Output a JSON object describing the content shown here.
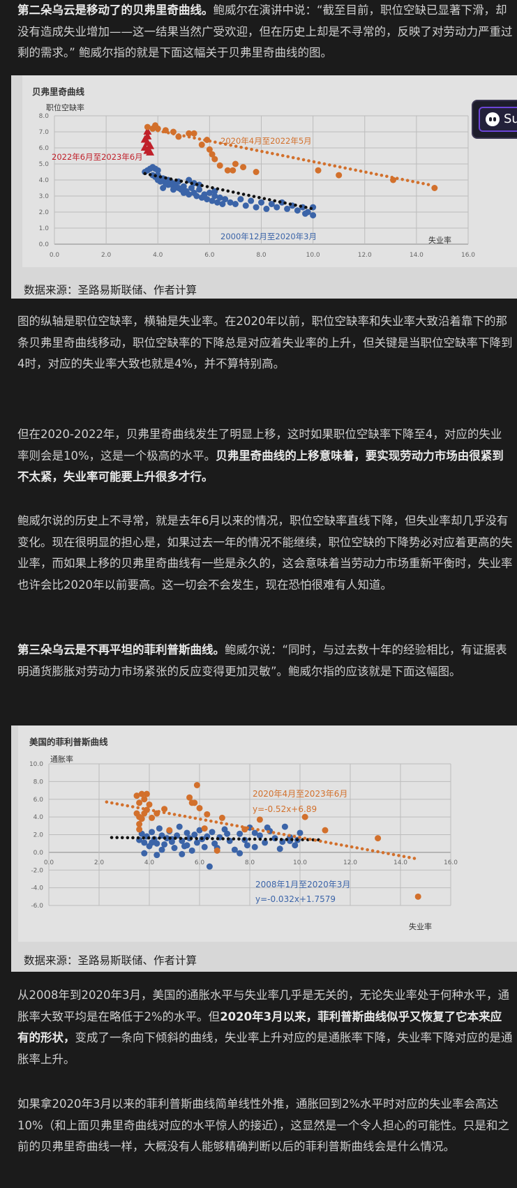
{
  "paragraphs": {
    "p1": {
      "bold": "第二朵乌云是移动了的贝弗里奇曲线。",
      "text": "鲍威尔在演讲中说：“截至目前，职位空缺已显著下滑，却没有造成失业增加——这一结果当然广受欢迎，但在历史上却是不寻常的，反映了对劳动力严重过剩的需求。” 鲍威尔指的就是下面这幅关于贝弗里奇曲线的图。"
    },
    "p2": {
      "text": "图的纵轴是职位空缺率，横轴是失业率。在2020年以前，职位空缺率和失业率大致沿着靠下的那条贝弗里奇曲线移动，职位空缺率的下降总是对应着失业率的上升，但关键是当职位空缺率下降到4时，对应的失业率大致也就是4%，并不算特别高。"
    },
    "p3": {
      "text": "但在2020-2022年，贝弗里奇曲线发生了明显上移，这时如果职位空缺率下降至4，对应的失业率则会是10%，这是一个极高的水平。",
      "bold": "贝弗里奇曲线的上移意味着，要实现劳动力市场由很紧到不太紧，失业率可能要上升很多才行。"
    },
    "p4": {
      "text": "鲍威尔说的历史上不寻常，就是去年6月以来的情况，职位空缺率直线下降，但失业率却几乎没有变化。现在很明显的担心是，如果过去一年的情况不能继续，职位空缺的下降势必对应着更高的失业率，而如果上移的贝弗里奇曲线有一些是永久的，这会意味着当劳动力市场重新平衡时，失业率也许会比2020年以前要高。这一切会不会发生，现在恐怕很难有人知道。"
    },
    "p5": {
      "bold": "第三朵乌云是不再平坦的菲利普斯曲线。",
      "text": "鲍威尔说：“同时，与过去数十年的经验相比，有证据表明通货膨胀对劳动力市场紧张的反应变得更加灵敏”。鲍威尔指的应该就是下面这幅图。"
    },
    "p6": {
      "text1": "从2008年到2020年3月，美国的通胀水平与失业率几乎是无关的，无论失业率处于何种水平，通胀率大致平均是在略低于2%的水平。但",
      "bold": "2020年3月以来，菲利普斯曲线似乎又恢复了它本来应有的形状，",
      "text2": "变成了一条向下倾斜的曲线，失业率上升对应的是通胀率下降，失业率下降对应的是通胀率上升。"
    },
    "p7": {
      "text": "如果拿2020年3月以来的菲利普斯曲线简单线性外推，通胀回到2%水平时对应的失业率会高达10%（和上面贝弗里奇曲线对应的水平惊人的接近），这显然是一个令人担心的可能性。只是和之前的贝弗里奇曲线一样，大概没有人能够精确判断以后的菲利普斯曲线会是什么情况。"
    }
  },
  "overlay": {
    "label": "Su",
    "icon": "ghost-icon"
  },
  "chart_data": [
    {
      "type": "scatter",
      "title": "贝弗里奇曲线",
      "ylabel": "职位空缺率",
      "xlabel": "失业率",
      "xlim": [
        0,
        16
      ],
      "ylim": [
        0,
        8
      ],
      "xticks": [
        "0.0",
        "2.0",
        "4.0",
        "6.0",
        "8.0",
        "10.0",
        "12.0",
        "14.0",
        "16.0"
      ],
      "yticks": [
        "0.0",
        "1.0",
        "2.0",
        "3.0",
        "4.0",
        "5.0",
        "6.0",
        "7.0",
        "8.0"
      ],
      "source": "数据来源：圣路易斯联储、作者计算",
      "colors": {
        "blue": "#3b64a8",
        "orange": "#d2702c",
        "red": "#c0202a",
        "trend": "#111111"
      },
      "series": [
        {
          "name": "2000年12月至2020年3月",
          "color": "#3b64a8",
          "points": [
            [
              3.5,
              4.5
            ],
            [
              3.6,
              4.6
            ],
            [
              3.7,
              4.7
            ],
            [
              3.8,
              4.8
            ],
            [
              3.9,
              4.7
            ],
            [
              4.0,
              4.6
            ],
            [
              3.8,
              4.3
            ],
            [
              3.9,
              4.2
            ],
            [
              4.0,
              4.0
            ],
            [
              4.1,
              3.9
            ],
            [
              4.2,
              4.1
            ],
            [
              4.3,
              3.8
            ],
            [
              4.4,
              3.7
            ],
            [
              4.5,
              3.9
            ],
            [
              4.6,
              3.6
            ],
            [
              4.7,
              3.8
            ],
            [
              4.8,
              3.5
            ],
            [
              4.9,
              3.4
            ],
            [
              5.0,
              3.6
            ],
            [
              5.1,
              3.3
            ],
            [
              5.2,
              3.1
            ],
            [
              5.3,
              3.5
            ],
            [
              5.4,
              3.2
            ],
            [
              5.5,
              3.0
            ],
            [
              5.6,
              3.4
            ],
            [
              5.7,
              2.9
            ],
            [
              5.8,
              3.1
            ],
            [
              5.9,
              2.8
            ],
            [
              6.0,
              3.2
            ],
            [
              6.1,
              2.7
            ],
            [
              6.2,
              3.0
            ],
            [
              6.3,
              2.6
            ],
            [
              6.4,
              2.9
            ],
            [
              6.5,
              2.5
            ],
            [
              6.6,
              2.8
            ],
            [
              6.8,
              2.6
            ],
            [
              7.0,
              2.5
            ],
            [
              7.2,
              2.8
            ],
            [
              7.4,
              2.4
            ],
            [
              7.6,
              2.7
            ],
            [
              7.8,
              2.3
            ],
            [
              8.0,
              2.6
            ],
            [
              8.2,
              2.2
            ],
            [
              8.4,
              2.5
            ],
            [
              8.6,
              2.3
            ],
            [
              8.8,
              2.6
            ],
            [
              9.0,
              2.2
            ],
            [
              9.2,
              2.4
            ],
            [
              9.4,
              2.1
            ],
            [
              9.6,
              2.3
            ],
            [
              9.8,
              2.0
            ],
            [
              10.0,
              2.3
            ],
            [
              10.0,
              1.8
            ],
            [
              9.7,
              1.9
            ],
            [
              4.2,
              3.5
            ],
            [
              4.4,
              4.0
            ],
            [
              4.8,
              3.9
            ],
            [
              5.2,
              4.0
            ],
            [
              5.6,
              3.7
            ],
            [
              6.2,
              3.3
            ],
            [
              4.0,
              4.3
            ],
            [
              4.6,
              3.4
            ],
            [
              5.0,
              3.2
            ],
            [
              5.4,
              3.8
            ]
          ]
        },
        {
          "name": "2020年4月至2022年5月",
          "color": "#d2702c",
          "points": [
            [
              3.6,
              7.3
            ],
            [
              3.8,
              7.2
            ],
            [
              3.9,
              7.4
            ],
            [
              4.0,
              7.2
            ],
            [
              4.3,
              7.1
            ],
            [
              4.6,
              7.0
            ],
            [
              4.8,
              6.7
            ],
            [
              5.2,
              6.9
            ],
            [
              5.4,
              6.9
            ],
            [
              5.9,
              6.5
            ],
            [
              6.0,
              5.9
            ],
            [
              6.1,
              5.6
            ],
            [
              6.2,
              5.3
            ],
            [
              6.4,
              4.9
            ],
            [
              6.7,
              4.6
            ],
            [
              6.9,
              4.6
            ],
            [
              7.0,
              5.0
            ],
            [
              7.3,
              4.8
            ],
            [
              7.8,
              4.5
            ],
            [
              10.2,
              4.6
            ],
            [
              11.0,
              4.3
            ],
            [
              13.1,
              4.0
            ],
            [
              14.7,
              3.5
            ],
            [
              5.7,
              6.2
            ]
          ]
        },
        {
          "name": "2022年6月至2023年6月",
          "color": "#c0202a",
          "points": [
            [
              3.6,
              7.0
            ],
            [
              3.6,
              6.7
            ],
            [
              3.5,
              6.5
            ],
            [
              3.6,
              6.3
            ],
            [
              3.7,
              6.1
            ],
            [
              3.5,
              6.0
            ],
            [
              3.6,
              5.8
            ],
            [
              3.7,
              5.7
            ]
          ]
        }
      ],
      "trendlines": [
        {
          "series": "2000年12月至2020年3月",
          "color": "#111111",
          "x": [
            3.5,
            10.0
          ],
          "y": [
            4.4,
            2.2
          ]
        },
        {
          "series": "2020年4月至2022年5月",
          "color": "#d2702c",
          "x": [
            3.6,
            14.5
          ],
          "y": [
            7.2,
            3.7
          ]
        }
      ],
      "annotations": [
        "2020年4月至2022年5月",
        "2022年6月至2023年6月",
        "2000年12月至2020年3月"
      ]
    },
    {
      "type": "scatter",
      "title": "美国的菲利普斯曲线",
      "ylabel": "通胀率",
      "xlabel": "失业率",
      "xlim": [
        0,
        16
      ],
      "ylim": [
        -6,
        10
      ],
      "xticks": [
        "0.0",
        "2.0",
        "4.0",
        "6.0",
        "8.0",
        "10.0",
        "12.0",
        "14.0",
        "16.0"
      ],
      "yticks": [
        "10.0",
        "8.0",
        "6.0",
        "4.0",
        "2.0",
        "0.0",
        "-2.0",
        "-4.0",
        "-6.0"
      ],
      "source": "数据来源：圣路易斯联储、作者计算",
      "colors": {
        "blue": "#3b64a8",
        "orange": "#d2702c",
        "trend": "#111111"
      },
      "series": [
        {
          "name": "2008年1月至2020年3月",
          "color": "#3b64a8",
          "points": [
            [
              3.6,
              1.4
            ],
            [
              3.7,
              2.1
            ],
            [
              3.8,
              1.1
            ],
            [
              3.9,
              1.8
            ],
            [
              4.0,
              0.7
            ],
            [
              4.1,
              2.3
            ],
            [
              4.2,
              1.5
            ],
            [
              4.3,
              1.0
            ],
            [
              4.4,
              2.7
            ],
            [
              4.5,
              1.9
            ],
            [
              4.6,
              0.9
            ],
            [
              4.7,
              1.6
            ],
            [
              4.8,
              2.4
            ],
            [
              4.9,
              1.2
            ],
            [
              5.0,
              0.5
            ],
            [
              5.1,
              1.9
            ],
            [
              5.2,
              2.9
            ],
            [
              5.3,
              1.3
            ],
            [
              5.4,
              0.7
            ],
            [
              5.5,
              2.2
            ],
            [
              5.6,
              1.6
            ],
            [
              5.7,
              0.2
            ],
            [
              5.8,
              2.0
            ],
            [
              5.9,
              1.1
            ],
            [
              6.0,
              2.5
            ],
            [
              6.1,
              1.5
            ],
            [
              6.2,
              0.6
            ],
            [
              6.3,
              1.8
            ],
            [
              6.4,
              -1.6
            ],
            [
              6.5,
              2.3
            ],
            [
              6.6,
              1.0
            ],
            [
              6.8,
              1.7
            ],
            [
              7.0,
              2.6
            ],
            [
              7.2,
              1.3
            ],
            [
              7.4,
              0.3
            ],
            [
              7.6,
              2.1
            ],
            [
              7.8,
              1.4
            ],
            [
              8.0,
              2.8
            ],
            [
              8.2,
              0.6
            ],
            [
              8.4,
              1.9
            ],
            [
              8.6,
              1.1
            ],
            [
              8.8,
              2.4
            ],
            [
              9.0,
              1.6
            ],
            [
              9.2,
              0.4
            ],
            [
              9.4,
              2.9
            ],
            [
              9.6,
              1.7
            ],
            [
              9.8,
              0.8
            ],
            [
              10.0,
              2.2
            ],
            [
              9.9,
              1.4
            ],
            [
              9.3,
              1.2
            ],
            [
              8.7,
              2.8
            ],
            [
              4.3,
              -0.3
            ],
            [
              4.9,
              1.5
            ],
            [
              5.5,
              0.8
            ],
            [
              6.7,
              0.5
            ],
            [
              7.9,
              0.8
            ],
            [
              7.1,
              2.1
            ],
            [
              9.6,
              1.3
            ],
            [
              4.5,
              0.3
            ],
            [
              5.3,
              -0.2
            ],
            [
              7.6,
              -0.1
            ],
            [
              8.2,
              2.2
            ],
            [
              4.1,
              1.1
            ],
            [
              3.8,
              -0.1
            ]
          ]
        },
        {
          "name": "2020年4月至2023年6月",
          "color": "#d2702c",
          "points": [
            [
              3.5,
              6.4
            ],
            [
              3.7,
              6.6
            ],
            [
              3.8,
              6.0
            ],
            [
              3.9,
              6.6
            ],
            [
              3.6,
              5.6
            ],
            [
              3.5,
              4.4
            ],
            [
              3.6,
              4.0
            ],
            [
              3.7,
              3.8
            ],
            [
              3.8,
              4.4
            ],
            [
              3.9,
              4.8
            ],
            [
              4.0,
              5.4
            ],
            [
              3.6,
              3.2
            ],
            [
              4.3,
              4.4
            ],
            [
              4.6,
              4.9
            ],
            [
              5.6,
              6.2
            ],
            [
              5.7,
              5.6
            ],
            [
              5.8,
              5.6
            ],
            [
              5.9,
              7.6
            ],
            [
              6.0,
              5.0
            ],
            [
              6.2,
              2.7
            ],
            [
              6.3,
              4.3
            ],
            [
              6.9,
              3.9
            ],
            [
              4.8,
              2.5
            ],
            [
              7.8,
              2.6
            ],
            [
              8.4,
              3.7
            ],
            [
              10.2,
              4.0
            ],
            [
              11.0,
              2.5
            ],
            [
              13.1,
              1.6
            ],
            [
              14.7,
              -5.0
            ],
            [
              6.7,
              0.2
            ],
            [
              3.6,
              2.6
            ],
            [
              4.1,
              3.9
            ]
          ]
        }
      ],
      "trendlines": [
        {
          "series": "2008年1月至2020年3月",
          "color": "#111111",
          "equation": "y=-0.032x+1.7579",
          "x": [
            2.5,
            10.8
          ],
          "y": [
            1.6779,
            1.4123
          ]
        },
        {
          "series": "2020年4月至2023年6月",
          "color": "#d2702c",
          "equation": "y=-0.52x+6.89",
          "x": [
            2.3,
            14.7
          ],
          "y": [
            5.694,
            -0.754
          ]
        }
      ],
      "annotations": [
        "2020年4月至2023年6月",
        "y=-0.52x+6.89",
        "2008年1月至2020年3月",
        "y=-0.032x+1.7579"
      ]
    }
  ]
}
